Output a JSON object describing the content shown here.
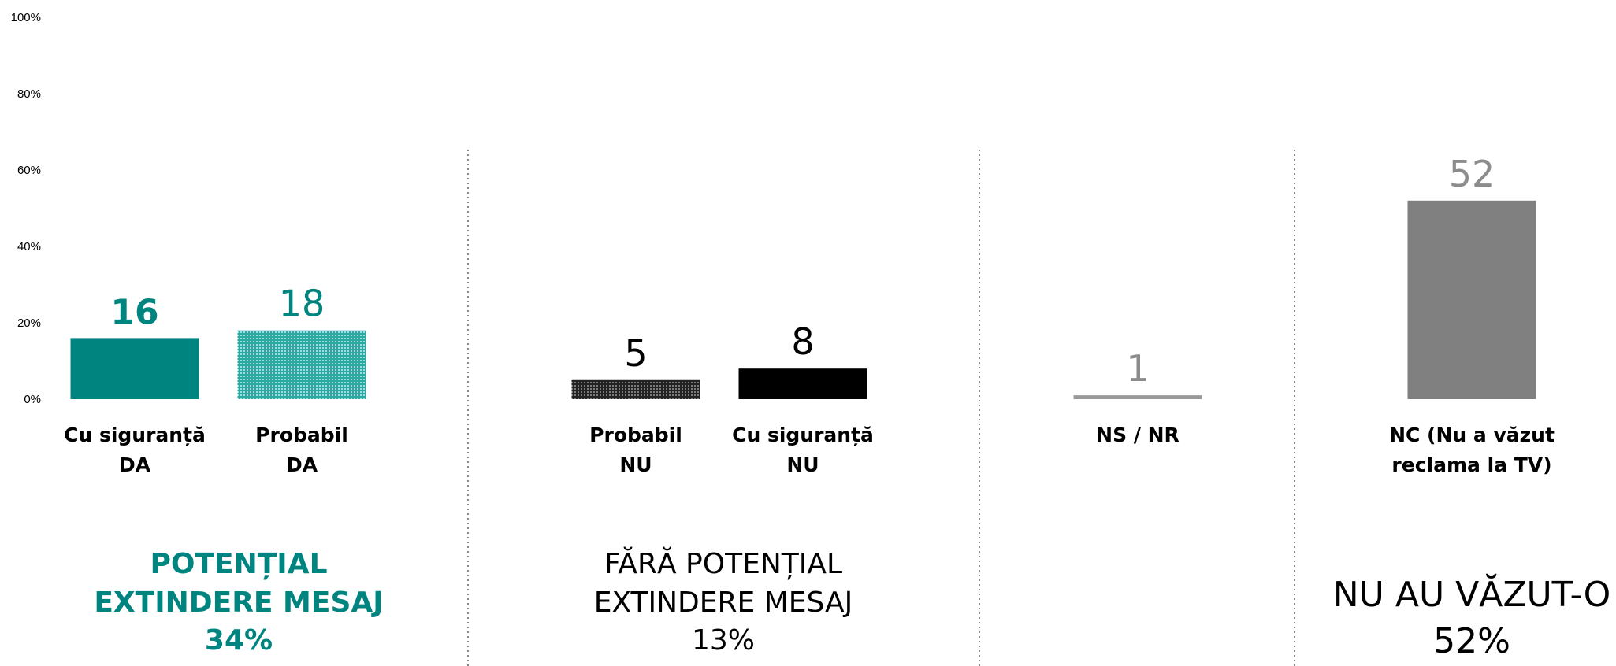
{
  "chart_data": {
    "type": "bar",
    "ylim": [
      0,
      100
    ],
    "yticks": [
      "0%",
      "20%",
      "40%",
      "60%",
      "80%",
      "100%"
    ],
    "yticks_values": [
      0,
      20,
      40,
      60,
      80,
      100
    ],
    "grid": false,
    "categories": [
      {
        "line1": "Cu siguranță",
        "line2": "DA"
      },
      {
        "line1": "Probabil",
        "line2": "DA"
      },
      {
        "line1": "Probabil",
        "line2": "NU"
      },
      {
        "line1": "Cu siguranță",
        "line2": "NU"
      },
      {
        "line1": "NS / NR",
        "line2": ""
      },
      {
        "line1": "NC (Nu a văzut",
        "line2": "reclama la TV)"
      }
    ],
    "values": [
      16,
      18,
      5,
      8,
      1,
      52
    ],
    "value_labels": [
      "16",
      "18",
      "5",
      "8",
      "1",
      "52"
    ],
    "bar_styles": [
      {
        "fill": "#00847f",
        "pattern": "solid",
        "label_color": "#00847f",
        "label_bold": true
      },
      {
        "fill": "#2aa8a3",
        "pattern": "dots-teal",
        "label_color": "#00847f",
        "label_bold": false
      },
      {
        "fill": "#333333",
        "pattern": "dots-dark",
        "label_color": "#000000",
        "label_bold": false
      },
      {
        "fill": "#000000",
        "pattern": "solid",
        "label_color": "#000000",
        "label_bold": false
      },
      {
        "fill": "#999999",
        "pattern": "solid",
        "label_color": "#8c8c8c",
        "label_bold": false
      },
      {
        "fill": "#808080",
        "pattern": "solid",
        "label_color": "#8c8c8c",
        "label_bold": false
      }
    ],
    "groups": [
      {
        "lines": [
          "POTENȚIAL",
          "EXTINDERE MESAJ",
          "34%"
        ],
        "color": "#00847f",
        "bold": true
      },
      {
        "lines": [
          "FĂRĂ POTENȚIAL",
          "EXTINDERE MESAJ",
          "13%"
        ],
        "color": "#000000",
        "bold": false
      },
      {
        "lines": [
          "NU AU VĂZUT-O",
          "52%"
        ],
        "color": "#000000",
        "bold": false
      }
    ]
  }
}
